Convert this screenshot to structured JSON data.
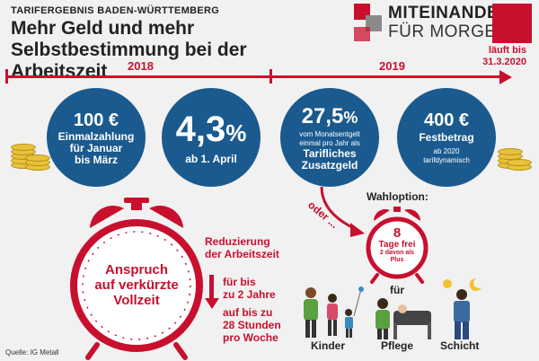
{
  "header": {
    "subtitle": "TARIFERGEBNIS BADEN-WÜRTTEMBERG",
    "title_line1": "Mehr Geld und mehr",
    "title_line2": "Selbstbestimmung bei der Arbeitszeit"
  },
  "logo": {
    "line1": "MITEINANDER",
    "line2": "FÜR MORGEN",
    "badge": "IG",
    "accent_color": "#c8102e",
    "secondary_color": "#8a8a8a"
  },
  "timeline": {
    "year1": "2018",
    "year2": "2019",
    "runs_until_line1": "läuft bis",
    "runs_until_line2": "31.3.2020",
    "color": "#c8102e"
  },
  "circles": [
    {
      "big": "100 €",
      "small1": "Einmalzahlung",
      "small2": "für Januar",
      "small3": "bis März"
    },
    {
      "big": "4,3",
      "big_suffix": "%",
      "small1": "ab 1. April"
    },
    {
      "big": "27,5",
      "big_suffix": "%",
      "small1": "vom Monatsentgelt",
      "small2": "einmal pro Jahr als",
      "small3": "Tarifliches",
      "small4": "Zusatzgeld"
    },
    {
      "big": "400 €",
      "small1": "Festbetrag",
      "small2": "ab 2020",
      "small3": "tarifdynamisch"
    }
  ],
  "circle_color": "#1a5a8f",
  "clock_main": {
    "line1": "Anspruch",
    "line2": "auf verkürzte",
    "line3": "Vollzeit"
  },
  "reduction": {
    "line1": "Reduzierung",
    "line2": "der Arbeitszeit",
    "line3": "für bis",
    "line4": "zu 2 Jahre",
    "line5": "auf bis zu",
    "line6": "28 Stunden",
    "line7": "pro Woche"
  },
  "option": {
    "oder": "oder ...",
    "label": "Wahloption:",
    "clock_big": "8",
    "clock_line1": "Tage frei",
    "clock_line2": "2 davon als",
    "clock_line3": "Plus",
    "fuer": "für"
  },
  "groups": [
    "Kinder",
    "Pflege",
    "Schicht"
  ],
  "source": "Quelle: IG Metall"
}
